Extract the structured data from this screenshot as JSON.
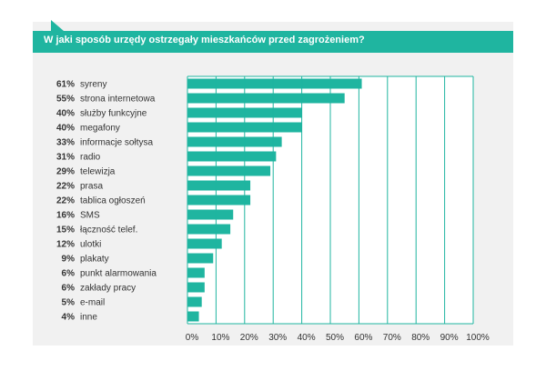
{
  "chart_data": {
    "type": "bar",
    "orientation": "horizontal",
    "title": "W jaki sposób urzędy ostrzegały mieszkańców przed zagrożeniem?",
    "categories": [
      "syreny",
      "strona internetowa",
      "służby funkcyjne",
      "megafony",
      "informacje sołtysa",
      "radio",
      "telewizja",
      "prasa",
      "tablica ogłoszeń",
      "SMS",
      "łączność telef.",
      "ulotki",
      "plakaty",
      "punkt alarmowania",
      "zakłady pracy",
      "e-mail",
      "inne"
    ],
    "values": [
      61,
      55,
      40,
      40,
      33,
      31,
      29,
      22,
      22,
      16,
      15,
      12,
      9,
      6,
      6,
      5,
      4
    ],
    "value_labels": [
      "61%",
      "55%",
      "40%",
      "40%",
      "33%",
      "31%",
      "29%",
      "22%",
      "22%",
      "16%",
      "15%",
      "12%",
      "9%",
      "6%",
      "6%",
      "5%",
      "4%"
    ],
    "xlim": [
      0,
      100
    ],
    "x_ticks": [
      "0%",
      "10%",
      "20%",
      "30%",
      "40%",
      "50%",
      "60%",
      "70%",
      "80%",
      "90%",
      "100%"
    ],
    "grid": true,
    "bar_color": "#1fb5a0",
    "grid_color": "#1fb5a0"
  }
}
